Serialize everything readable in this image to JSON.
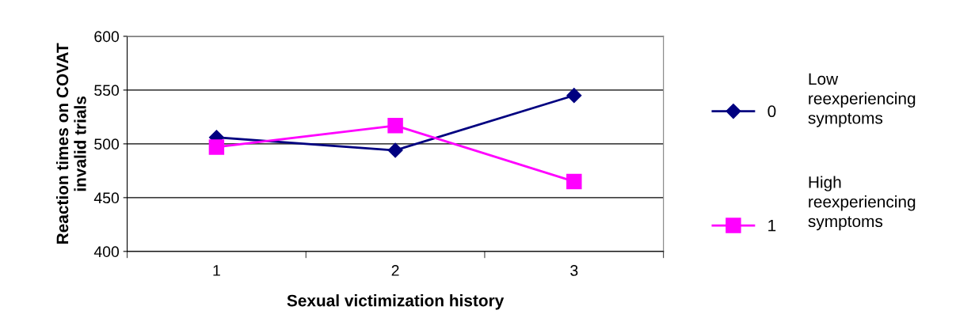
{
  "chart_data": {
    "type": "line",
    "xlabel": "Sexual victimization history",
    "ylabel": "Reaction times on COVAT\ninvalid trials",
    "categories": [
      "1",
      "2",
      "3"
    ],
    "series": [
      {
        "name": "0",
        "color": "#000080",
        "values": [
          506,
          494,
          545
        ],
        "marker": "diamond"
      },
      {
        "name": "1",
        "color": "#ff00ff",
        "values": [
          497,
          517,
          465
        ],
        "marker": "square"
      }
    ],
    "ylim": [
      400,
      600
    ],
    "yticks": [
      400,
      450,
      500,
      550,
      600
    ],
    "grid": "y",
    "legend": "right",
    "line_style": "solid",
    "annotations": [
      "Low\nreexperiencing\nsymptoms",
      "High\nreexperiencing\nsymptoms"
    ]
  }
}
